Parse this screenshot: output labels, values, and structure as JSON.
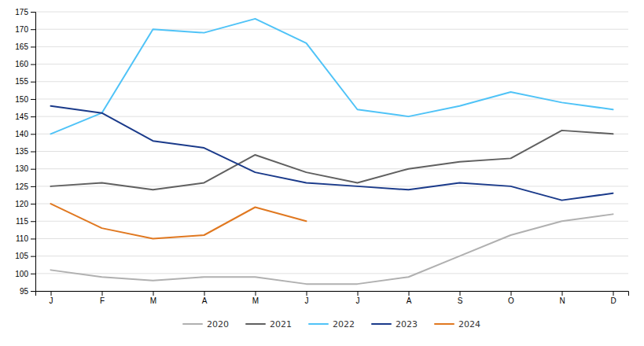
{
  "chart_data": {
    "type": "line",
    "categories": [
      "J",
      "F",
      "M",
      "A",
      "M",
      "J",
      "J",
      "A",
      "S",
      "O",
      "N",
      "D"
    ],
    "series": [
      {
        "name": "2020",
        "color": "#b0b0b0",
        "values": [
          101,
          99,
          98,
          99,
          99,
          97,
          97,
          99,
          105,
          111,
          115,
          117
        ]
      },
      {
        "name": "2021",
        "color": "#606060",
        "values": [
          125,
          126,
          124,
          126,
          134,
          129,
          126,
          130,
          132,
          133,
          141,
          140
        ]
      },
      {
        "name": "2022",
        "color": "#4fc3f7",
        "values": [
          140,
          146,
          170,
          169,
          173,
          166,
          147,
          145,
          148,
          152,
          149,
          147
        ]
      },
      {
        "name": "2023",
        "color": "#1a3a8a",
        "values": [
          148,
          146,
          138,
          136,
          129,
          126,
          125,
          124,
          126,
          125,
          121,
          123
        ]
      },
      {
        "name": "2024",
        "color": "#e07820",
        "values": [
          120,
          113,
          110,
          111,
          119,
          115,
          null,
          null,
          null,
          null,
          null,
          null
        ]
      }
    ],
    "ylim": [
      95,
      175
    ],
    "yticks": [
      95,
      100,
      105,
      110,
      115,
      120,
      125,
      130,
      135,
      140,
      145,
      150,
      155,
      160,
      165,
      170,
      175
    ],
    "grid": true,
    "legend": "bottom"
  }
}
